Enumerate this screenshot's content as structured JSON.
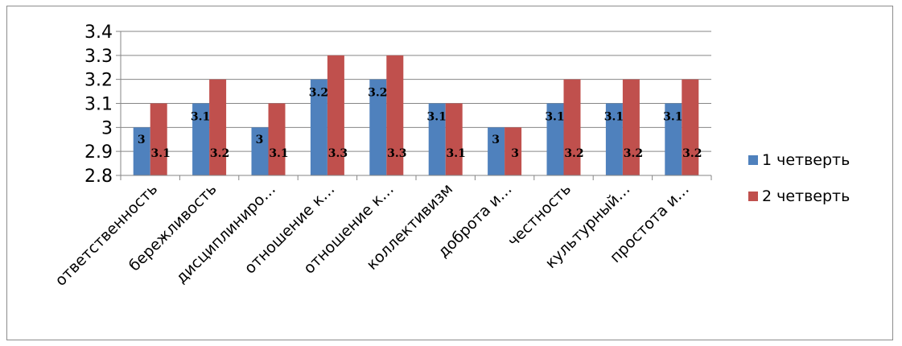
{
  "chart_data": {
    "type": "bar",
    "categories": [
      "ответственность",
      "бережливость",
      "дисциплиниро…",
      "отношение к…",
      "отношение к…",
      "коллективизм",
      "доброта и…",
      "честность",
      "культурный…",
      "простота и…"
    ],
    "series": [
      {
        "name": "1 четверть",
        "values": [
          3,
          3.1,
          3,
          3.2,
          3.2,
          3.1,
          3,
          3.1,
          3.1,
          3.1
        ],
        "color": "#4f81bd"
      },
      {
        "name": "2 четверть",
        "values": [
          3.1,
          3.2,
          3.1,
          3.3,
          3.3,
          3.1,
          3,
          3.2,
          3.2,
          3.2
        ],
        "color": "#c0504d"
      }
    ],
    "y_ticks": [
      "2.8",
      "2.9",
      "3",
      "3.1",
      "3.2",
      "3.3",
      "3.4"
    ],
    "ylim": [
      2.8,
      3.4
    ],
    "title": "",
    "xlabel": "",
    "ylabel": "",
    "grid": true,
    "legend": "right"
  }
}
